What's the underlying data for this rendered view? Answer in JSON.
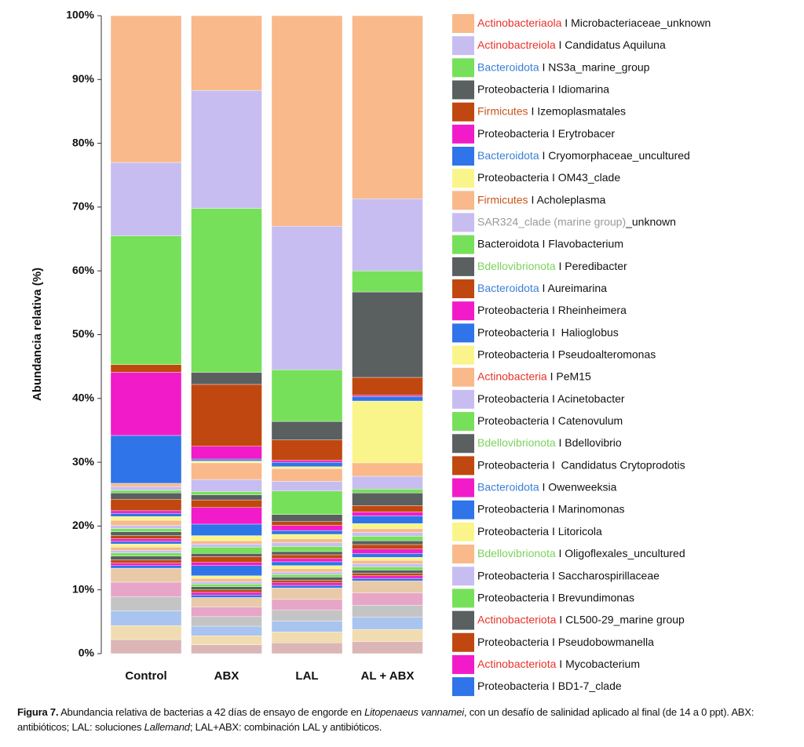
{
  "chart_data": {
    "type": "stacked_bar",
    "ylabel": "Abundancia relativa (%)",
    "categories": [
      "Control",
      "ABX",
      "LAL",
      "AL + ABX"
    ],
    "ylim": [
      0,
      100
    ],
    "yticks": [
      {
        "value": 0,
        "label": "0%"
      },
      {
        "value": 10,
        "label": "10%"
      },
      {
        "value": 20,
        "label": "20%"
      },
      {
        "value": 30,
        "label": "30%"
      },
      {
        "value": 40,
        "label": "40%"
      },
      {
        "value": 50,
        "label": "50%"
      },
      {
        "value": 60,
        "label": "60%"
      },
      {
        "value": 70,
        "label": "70%"
      },
      {
        "value": 80,
        "label": "80%"
      },
      {
        "value": 90,
        "label": "90%"
      },
      {
        "value": 100,
        "label": "100%"
      }
    ],
    "series": [
      {
        "name": [
          "Actinobacteriaola",
          " I Microbacteriaceae_unknown"
        ],
        "name_color": "#e8322a",
        "color": "#f9b98a",
        "values": [
          23,
          11.7,
          33,
          28.7
        ]
      },
      {
        "name": [
          "Actinobactreiola",
          " I Candidatus Aquiluna"
        ],
        "name_color": "#e8322a",
        "color": "#c8bdf0",
        "values": [
          11.5,
          18.5,
          22.5,
          11.3
        ]
      },
      {
        "name": [
          "Bacteroidota",
          " I NS3a_marine_group"
        ],
        "name_color": "#3a7fd8",
        "color": "#77e05a",
        "values": [
          20.2,
          25.7,
          8.1,
          3.3
        ]
      },
      {
        "name": [
          "Proteobacteria I Idiomarina"
        ],
        "color": "#5a5f5f",
        "values": [
          0,
          1.9,
          2.9,
          13.4
        ]
      },
      {
        "name": [
          "Firmicutes",
          " I Izemoplasmatales"
        ],
        "name_color": "#c8561e",
        "color": "#c0470f",
        "values": [
          1.2,
          9.7,
          3.2,
          2.8
        ]
      },
      {
        "name": [
          "Proteobacteria I Erytrobacer"
        ],
        "color": "#f21bc9",
        "values": [
          9.9,
          2,
          0.3,
          0.2
        ]
      },
      {
        "name": [
          "Bacteroidota",
          " I Cryomorphaceae_uncultured"
        ],
        "name_color": "#3a7fd8",
        "color": "#2f74e8",
        "values": [
          7.5,
          0.3,
          0.7,
          0.7
        ]
      },
      {
        "name": [
          "Proteobacteria I OM43_clade"
        ],
        "color": "#f9f58a",
        "values": [
          0,
          0.3,
          0.3,
          9.7
        ]
      },
      {
        "name": [
          "Firmicutes",
          " I Acholeplasma"
        ],
        "name_color": "#c8561e",
        "color": "#f9b98a",
        "values": [
          0.5,
          2.6,
          2,
          2.1
        ]
      },
      {
        "name": [
          "SAR324_clade (marine group)",
          "_unknown"
        ],
        "name_color": "#9a9a9a",
        "color": "#c8bdf0",
        "values": [
          0.6,
          1.9,
          1.5,
          2
        ]
      },
      {
        "name": [
          "Bacteroidota I Flavobacterium"
        ],
        "color": "#77e05a",
        "values": [
          0.4,
          0.5,
          3.7,
          0.6
        ]
      },
      {
        "name": [
          "Bdellovibrionota",
          " I Peredibacter"
        ],
        "name_color": "#7ad35a",
        "color": "#5a5f5f",
        "values": [
          1,
          0.8,
          1.1,
          2
        ]
      },
      {
        "name": [
          "Bacteroidota",
          " I Aureimarina"
        ],
        "name_color": "#3a7fd8",
        "color": "#c0470f",
        "values": [
          1.8,
          1.2,
          0.6,
          1
        ]
      },
      {
        "name": [
          "Proteobacteria I Rheinheimera"
        ],
        "color": "#f21bc9",
        "values": [
          0.4,
          2.6,
          0.8,
          0.6
        ]
      },
      {
        "name": [
          "Proteobacteria I  Halioglobus"
        ],
        "color": "#2f74e8",
        "values": [
          0.5,
          1.8,
          0.6,
          1.2
        ]
      },
      {
        "name": [
          "Proteobacteria I Pseudoalteromonas"
        ],
        "color": "#f9f58a",
        "values": [
          0.6,
          0.8,
          0.7,
          0.8
        ]
      },
      {
        "name": [
          "Actinobacteria",
          " I PeM15"
        ],
        "name_color": "#e8322a",
        "color": "#f9b98a",
        "values": [
          0.8,
          0.5,
          0.6,
          0.6
        ]
      },
      {
        "name": [
          "Proteobacteria I Acinetobacter"
        ],
        "color": "#c8bdf0",
        "values": [
          0.5,
          0.5,
          0.6,
          0.6
        ]
      },
      {
        "name": [
          "Proteobacteria I Catenovulum"
        ],
        "color": "#77e05a",
        "values": [
          0.5,
          1,
          0.8,
          0.7
        ]
      },
      {
        "name": [
          "Bdellovibrionota",
          " I Bdellovibrio"
        ],
        "name_color": "#7ad35a",
        "color": "#5a5f5f",
        "values": [
          0.6,
          0.5,
          0.5,
          0.6
        ]
      },
      {
        "name": [
          "Proteobacteria I  Candidatus Crytoprodotis"
        ],
        "color": "#c0470f",
        "values": [
          0.5,
          0.9,
          0.6,
          0.7
        ]
      },
      {
        "name": [
          "Bacteroidota",
          " I Owenweeksia"
        ],
        "name_color": "#3a7fd8",
        "color": "#f21bc9",
        "values": [
          0.4,
          0.5,
          0.5,
          0.7
        ]
      },
      {
        "name": [
          "Proteobacteria I Marinomonas"
        ],
        "color": "#2f74e8",
        "values": [
          0.4,
          1.6,
          0.6,
          0.6
        ]
      },
      {
        "name": [
          "Proteobacteria I Litoricola"
        ],
        "color": "#f9f58a",
        "values": [
          0.5,
          0.4,
          0.5,
          0.5
        ]
      },
      {
        "name": [
          "Bdellovibrionota",
          " I Oligoflexales_uncultured"
        ],
        "name_color": "#7ad35a",
        "color": "#f9b98a",
        "values": [
          0.5,
          0.5,
          0.5,
          0.5
        ]
      },
      {
        "name": [
          "Proteobacteria I Saccharospirillaceae"
        ],
        "color": "#c8bdf0",
        "values": [
          0.4,
          0.4,
          0.4,
          0.5
        ]
      },
      {
        "name": [
          "Proteobacteria I Brevundimonas"
        ],
        "color": "#77e05a",
        "values": [
          0.5,
          0.4,
          0.4,
          0.5
        ]
      },
      {
        "name": [
          "Actinobacteriota",
          " I CL500-29_marine group"
        ],
        "name_color": "#e8322a",
        "color": "#5a5f5f",
        "values": [
          0.6,
          0.5,
          0.5,
          0.5
        ]
      },
      {
        "name": [
          "Proteobacteria I Pseudobowmanella"
        ],
        "color": "#c0470f",
        "values": [
          0.5,
          0.4,
          0.4,
          0.4
        ]
      },
      {
        "name": [
          "Actinobacteriota",
          " I Mycobacterium"
        ],
        "name_color": "#e8322a",
        "color": "#f21bc9",
        "values": [
          0.4,
          0.4,
          0.4,
          0.4
        ]
      },
      {
        "name": [
          "Proteobacteria I BD1-7_clade"
        ],
        "color": "#2f74e8",
        "values": [
          0.4,
          0.4,
          0.4,
          0.4
        ]
      },
      {
        "color": "#e8c9a8",
        "values": [
          2.2,
          1.5,
          1.8,
          1.9
        ]
      },
      {
        "color": "#e7a6c8",
        "values": [
          2.3,
          1.5,
          1.7,
          1.9
        ]
      },
      {
        "color": "#c4c4c4",
        "values": [
          2.2,
          1.5,
          1.7,
          1.9
        ]
      },
      {
        "color": "#a9c4ef",
        "values": [
          2.3,
          1.5,
          1.7,
          1.9
        ]
      },
      {
        "color": "#f0dcb0",
        "values": [
          2.2,
          1.4,
          1.7,
          1.9
        ]
      },
      {
        "color": "#dcb6b6",
        "values": [
          2.2,
          1.4,
          1.7,
          1.9
        ]
      }
    ]
  },
  "caption": {
    "lines": [
      [
        {
          "text": "Figura 7.",
          "style": "bold"
        },
        {
          "text": " Abundancia relativa de bacterias a 42 días de ensayo de engorde en ",
          "style": "normal"
        },
        {
          "text": "Litopenaeus vannamei",
          "style": "italic"
        },
        {
          "text": ", con un desafío de salinidad aplicado al final (de 14 a 0 ppt). ABX:",
          "style": "normal"
        }
      ],
      [
        {
          "text": "antibióticos; LAL: soluciones ",
          "style": "normal"
        },
        {
          "text": "Lallemand",
          "style": "italic"
        },
        {
          "text": "; LAL+ABX: combinación LAL y antibióticos.",
          "style": "normal"
        }
      ]
    ]
  }
}
